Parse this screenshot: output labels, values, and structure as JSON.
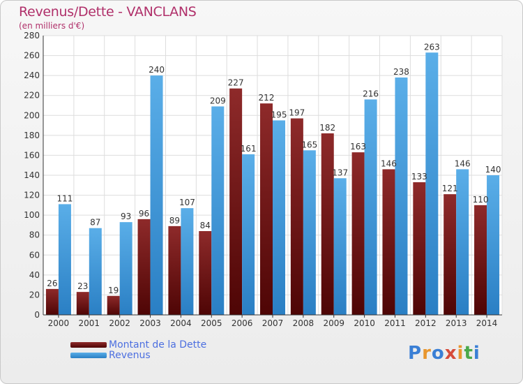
{
  "chart_data": {
    "type": "bar",
    "title": "Revenus/Dette - VANCLANS",
    "subtitle": "(en milliers d'€)",
    "categories": [
      "2000",
      "2001",
      "2002",
      "2003",
      "2004",
      "2005",
      "2006",
      "2007",
      "2008",
      "2009",
      "2010",
      "2011",
      "2012",
      "2013",
      "2014"
    ],
    "series": [
      {
        "name": "Montant de la Dette",
        "color": "#7a1a1a",
        "values": [
          26,
          23,
          19,
          96,
          89,
          84,
          227,
          212,
          197,
          182,
          163,
          146,
          133,
          121,
          110
        ]
      },
      {
        "name": "Revenus",
        "color": "#3d9be0",
        "values": [
          111,
          87,
          93,
          240,
          107,
          209,
          161,
          195,
          165,
          137,
          216,
          238,
          263,
          146,
          140
        ]
      }
    ],
    "ylim": [
      0,
      280
    ],
    "yticks": [
      0,
      20,
      40,
      60,
      80,
      100,
      120,
      140,
      160,
      180,
      200,
      220,
      240,
      260,
      280
    ],
    "grid": true,
    "legend_position": "bottom-left"
  },
  "logo": {
    "text": "Proxiti",
    "letters": [
      "P",
      "r",
      "o",
      "x",
      "i",
      "t",
      "i"
    ],
    "colors": [
      "#3a7fd5",
      "#e8962e",
      "#3a7fd5",
      "#d64b3a",
      "#e8962e",
      "#4aa84a",
      "#3a7fd5"
    ]
  }
}
